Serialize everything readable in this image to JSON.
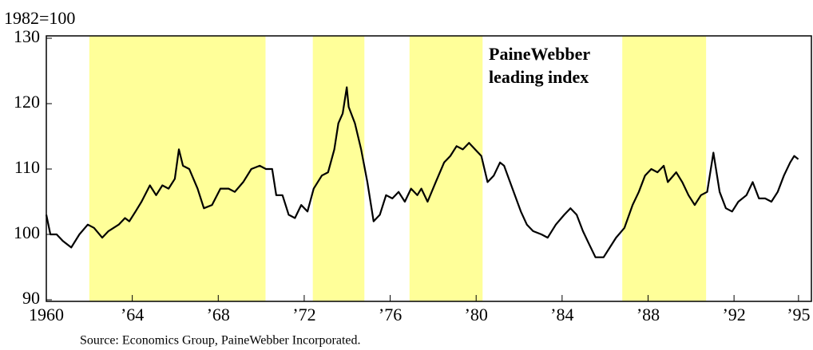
{
  "chart_data": {
    "type": "line",
    "y_axis_label": "1982=100",
    "annotation": [
      "PaineWebber",
      "leading index"
    ],
    "source": "Source: Economics Group, PaineWebber Incorporated.",
    "xlim": [
      1960,
      1995.6
    ],
    "xticks": [
      1960,
      {
        "value": 1964,
        "label": "’64"
      },
      {
        "value": 1968,
        "label": "’68"
      },
      {
        "value": 1972,
        "label": "’72"
      },
      {
        "value": 1976,
        "label": "’76"
      },
      {
        "value": 1980,
        "label": "’80"
      },
      {
        "value": 1984,
        "label": "’84"
      },
      {
        "value": 1988,
        "label": "’88"
      },
      {
        "value": 1992,
        "label": "’92"
      },
      {
        "value": 1995,
        "label": "’95"
      }
    ],
    "ylim": [
      90,
      130
    ],
    "yticks": [
      90,
      100,
      110,
      120,
      130
    ],
    "shaded_periods": [
      [
        1962.0,
        1970.2
      ],
      [
        1972.4,
        1974.8
      ],
      [
        1976.9,
        1980.3
      ],
      [
        1986.8,
        1990.7
      ]
    ],
    "shade_color": "#ffff99",
    "series": [
      {
        "color": "#000000",
        "x": [
          1960,
          1960.19,
          1960.48,
          1960.77,
          1961.16,
          1961.54,
          1961.93,
          1962.22,
          1962.6,
          1962.89,
          1963.37,
          1963.66,
          1963.86,
          1964.15,
          1964.43,
          1964.82,
          1965.11,
          1965.4,
          1965.69,
          1965.98,
          1966.17,
          1966.36,
          1966.65,
          1967.04,
          1967.33,
          1967.71,
          1968.1,
          1968.48,
          1968.77,
          1969.16,
          1969.54,
          1969.93,
          1970.22,
          1970.51,
          1970.7,
          1970.99,
          1971.28,
          1971.57,
          1971.86,
          1972.15,
          1972.44,
          1972.82,
          1973.11,
          1973.4,
          1973.59,
          1973.79,
          1973.98,
          1974.07,
          1974.36,
          1974.65,
          1974.94,
          1975.23,
          1975.52,
          1975.81,
          1976.1,
          1976.39,
          1976.68,
          1976.97,
          1977.26,
          1977.45,
          1977.74,
          1978.12,
          1978.51,
          1978.8,
          1979.09,
          1979.38,
          1979.67,
          1979.95,
          1980.24,
          1980.53,
          1980.82,
          1981.11,
          1981.3,
          1981.69,
          1982.08,
          1982.36,
          1982.65,
          1983.04,
          1983.33,
          1983.71,
          1984.1,
          1984.39,
          1984.68,
          1984.97,
          1985.26,
          1985.55,
          1985.93,
          1986.22,
          1986.51,
          1986.9,
          1987.28,
          1987.57,
          1987.86,
          1988.15,
          1988.44,
          1988.73,
          1988.92,
          1989.31,
          1989.59,
          1989.88,
          1990.17,
          1990.46,
          1990.75,
          1991.04,
          1991.33,
          1991.62,
          1991.91,
          1992.2,
          1992.58,
          1992.87,
          1993.16,
          1993.45,
          1993.74,
          1994.03,
          1994.32,
          1994.61,
          1994.8,
          1994.99
        ],
        "values": [
          103,
          100,
          100,
          99,
          98,
          100,
          101.5,
          101,
          99.5,
          100.5,
          101.5,
          102.5,
          102,
          103.5,
          105,
          107.5,
          106,
          107.5,
          107,
          108.5,
          113,
          110.5,
          110,
          107,
          104,
          104.5,
          107,
          107,
          106.5,
          108,
          110,
          110.5,
          110,
          110,
          106,
          106,
          103,
          102.5,
          104.5,
          103.5,
          107,
          109,
          109.5,
          113,
          117,
          118.5,
          122.5,
          119.5,
          117,
          113,
          108,
          102,
          103,
          106,
          105.5,
          106.5,
          105,
          107,
          106,
          107,
          105,
          108,
          111,
          112,
          113.5,
          113,
          114,
          113,
          112,
          108,
          109,
          111,
          110.5,
          107,
          103.5,
          101.5,
          100.5,
          100,
          99.5,
          101.5,
          103,
          104,
          103,
          100.5,
          98.5,
          96.5,
          96.5,
          98,
          99.5,
          101,
          104.5,
          106.5,
          109,
          110,
          109.5,
          110.5,
          108,
          109.5,
          108,
          106,
          104.5,
          106,
          106.5,
          112.5,
          106.5,
          104,
          103.5,
          105,
          106,
          108,
          105.5,
          105.5,
          105,
          106.5,
          109,
          111,
          112,
          111.5
        ]
      }
    ]
  }
}
